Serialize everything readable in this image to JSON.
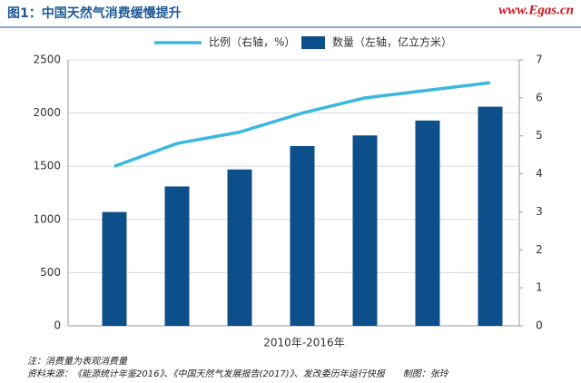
{
  "chart_data": {
    "type": "bar-line",
    "title": "图1：中国天然气消费缓慢提升",
    "watermark": "www.Egas.cn",
    "x_label": "2010年-2016年",
    "categories": [
      null,
      null,
      null,
      null,
      null,
      null,
      null
    ],
    "series": [
      {
        "name": "数量（左轴，亿立方米）",
        "type": "bar",
        "color": "#0d4f8b",
        "values": [
          1070,
          1310,
          1470,
          1690,
          1790,
          1930,
          2060
        ]
      },
      {
        "name": "比例（右轴，%）",
        "type": "line",
        "axis": "y2",
        "color": "#3bb8e0",
        "values": [
          4.2,
          4.8,
          5.1,
          5.6,
          6.0,
          6.2,
          6.4
        ]
      }
    ],
    "ylim": [
      0,
      2500
    ],
    "yticks": [
      0,
      500,
      1000,
      1500,
      2000,
      2500
    ],
    "y2lim": [
      0,
      7
    ],
    "y2ticks": [
      0,
      1,
      2,
      3,
      4,
      5,
      6,
      7
    ],
    "grid": true,
    "notes": [
      "注：消费量为表观消费量",
      "资料来源：《能源统计年鉴2016》、《中国天然气发展报告(2017)》、发改委历年运行快报　　制图：张玲"
    ]
  }
}
